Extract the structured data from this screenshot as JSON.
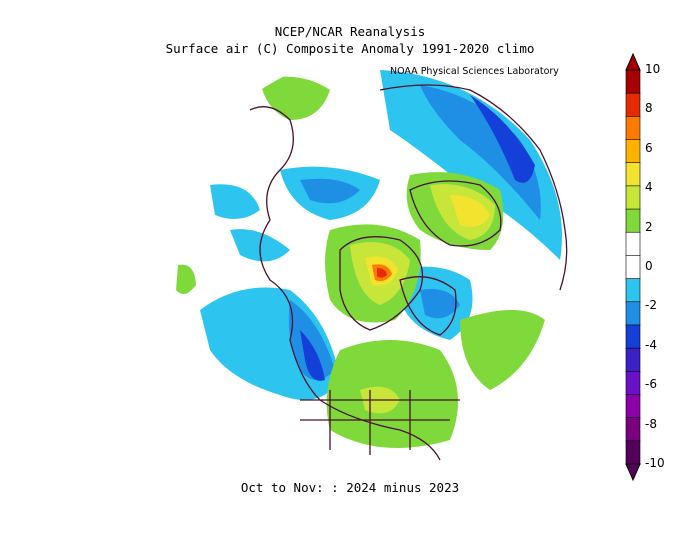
{
  "title_line1": "NCEP/NCAR Reanalysis",
  "title_line2": "Surface air (C) Composite Anomaly 1991-2020 climo",
  "credit": "NOAA Physical Sciences Laboratory",
  "caption": "Oct to Nov: : 2024 minus 2023",
  "colorbar": {
    "ticks": [
      "10",
      "8",
      "6",
      "4",
      "2",
      "0",
      "-2",
      "-4",
      "-6",
      "-8",
      "-10"
    ],
    "colors": [
      "#a80000",
      "#e62b00",
      "#ff7a00",
      "#ffb300",
      "#f2e32e",
      "#c8e63a",
      "#7fd93a",
      "#ffffff",
      "#ffffff",
      "#2ec4f0",
      "#1f8fe6",
      "#1440d9",
      "#3b20c8",
      "#6a10c8",
      "#8c00a8",
      "#7a0080",
      "#54005a"
    ]
  }
}
